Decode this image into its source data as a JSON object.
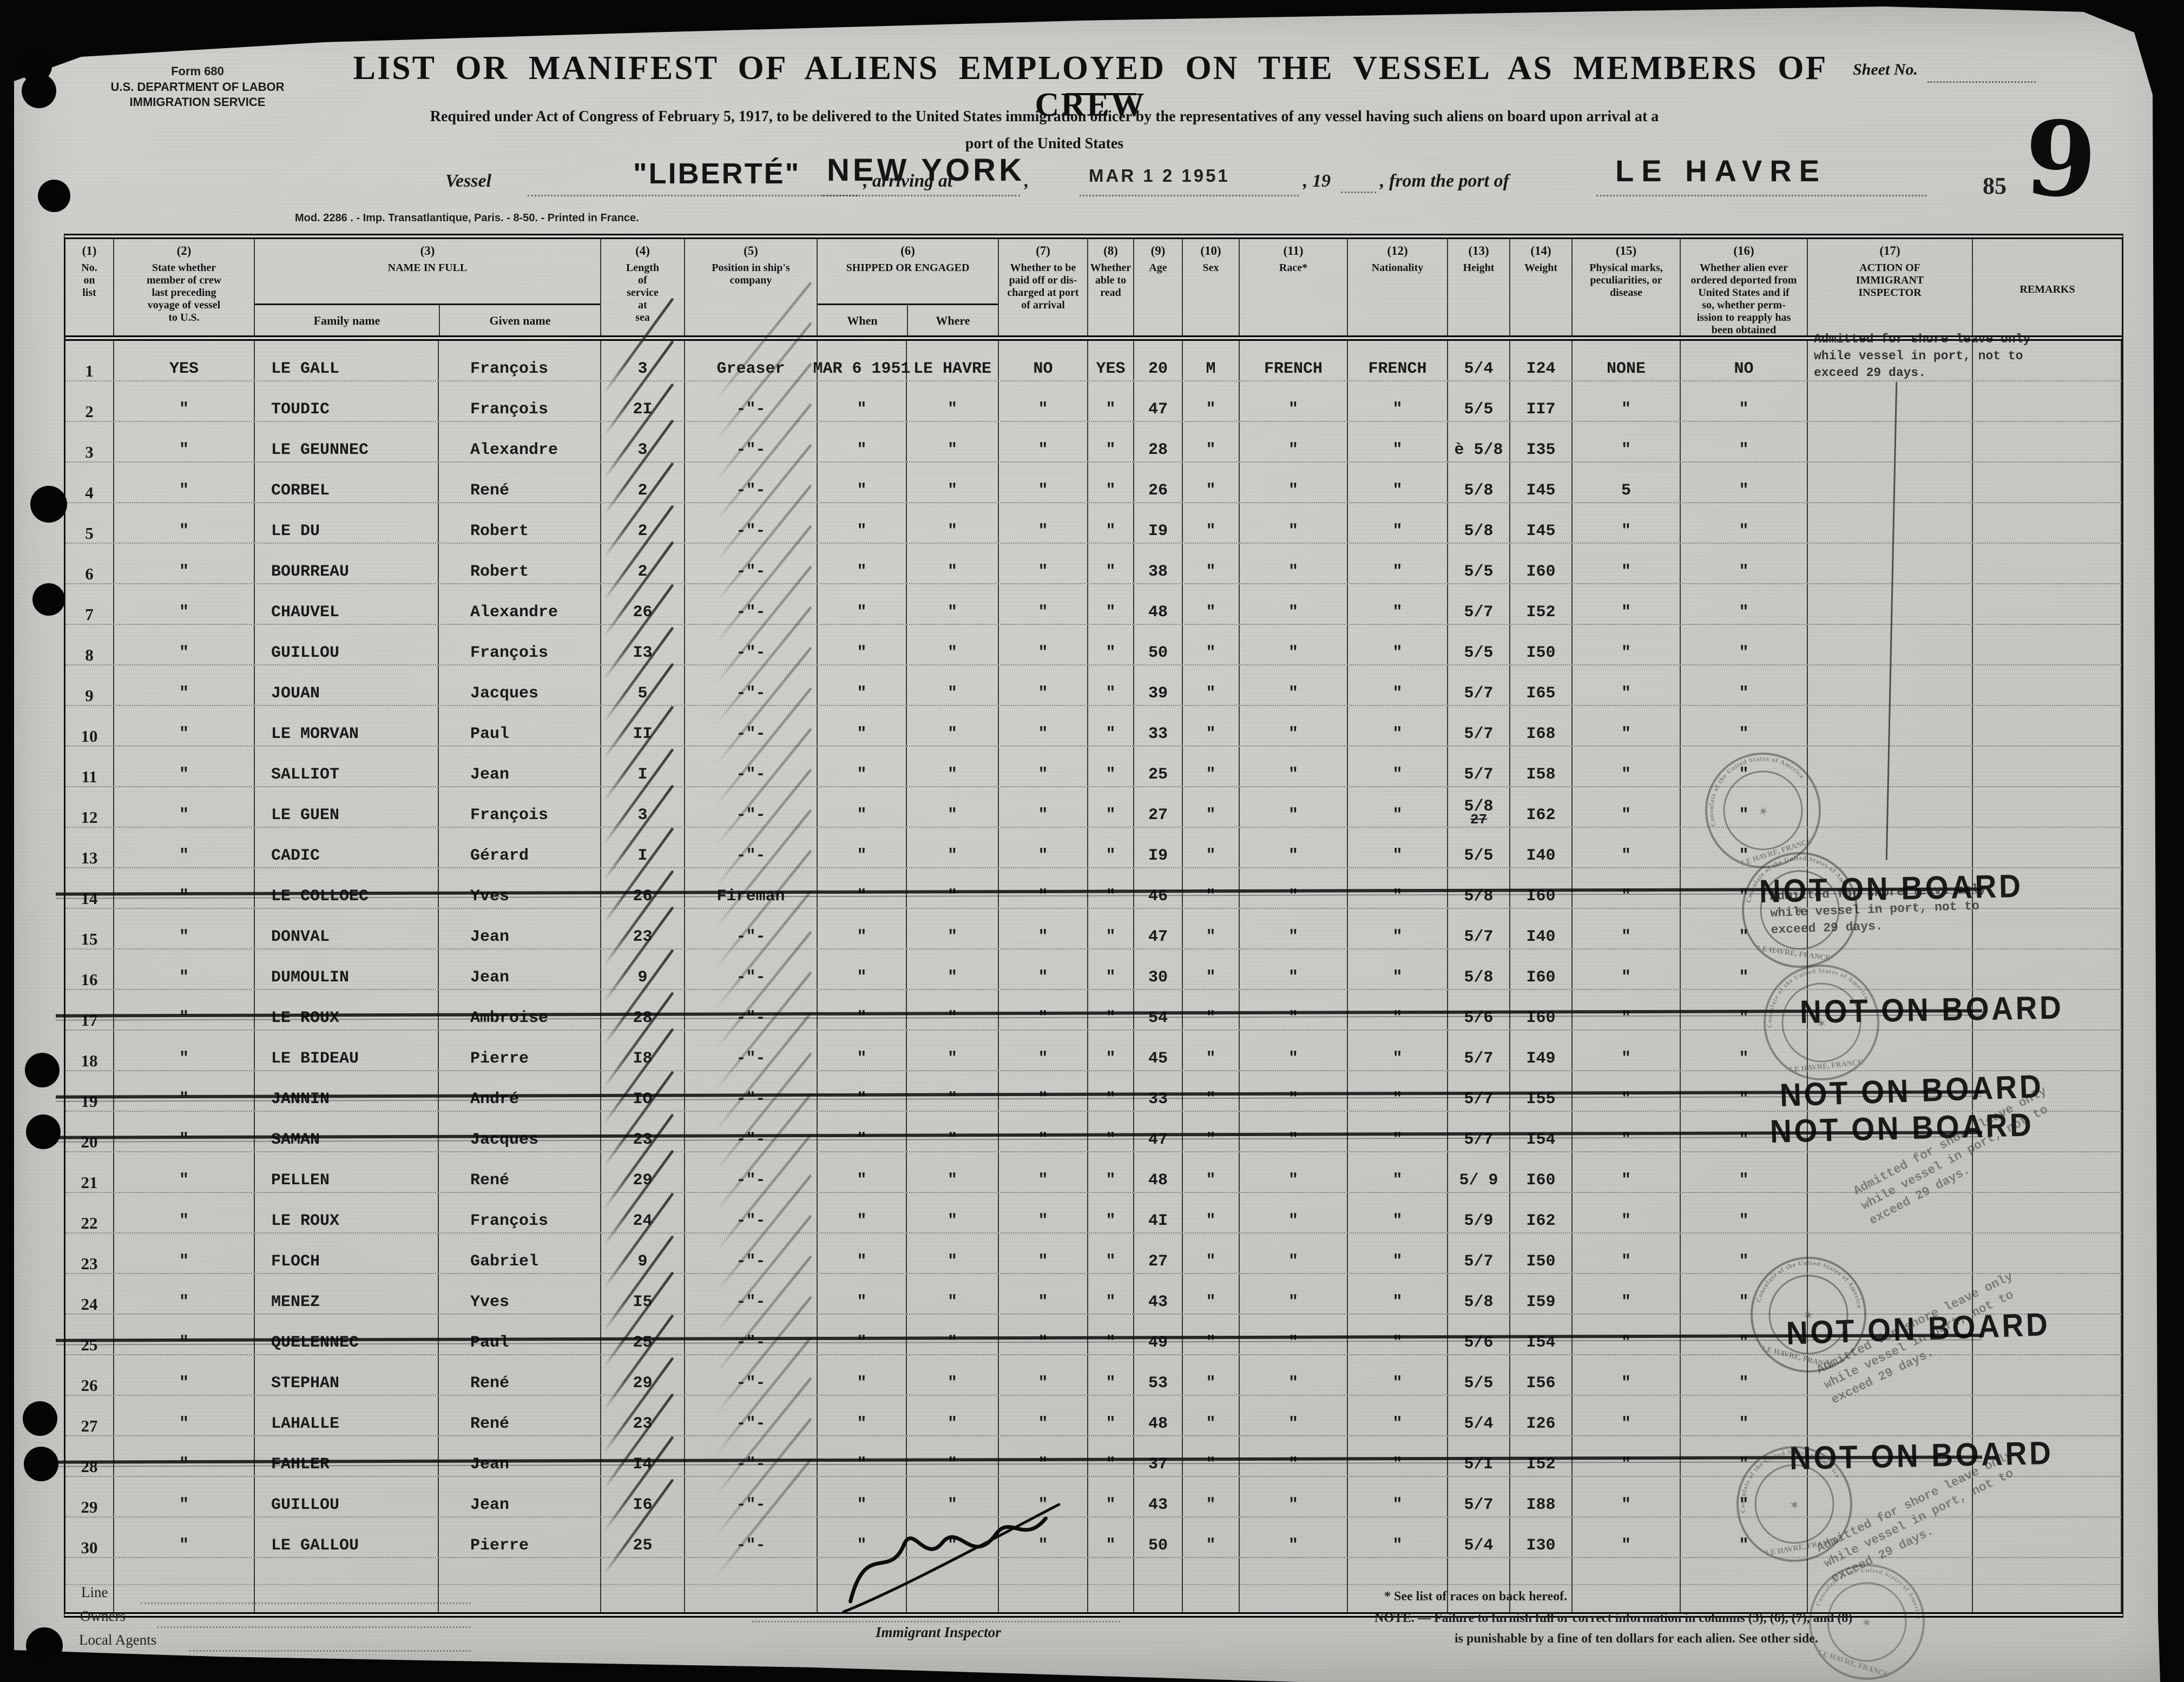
{
  "form": {
    "form_no": "Form 680",
    "dept": "U.S. DEPARTMENT OF LABOR",
    "service": "IMMIGRATION SERVICE",
    "title": "LIST OR MANIFEST OF ALIENS EMPLOYED ON THE VESSEL AS MEMBERS OF CREW",
    "subtitle_1": "Required under Act of Congress of February 5, 1917, to be delivered to the United States immigration officer by the representatives of any vessel having such aliens on board upon arrival at a",
    "subtitle_2": "port of the United States",
    "imprint": "Mod. 2286 .  -  Imp. Transatlantique, Paris.  -  8-50.  -  Printed in France."
  },
  "sheet": {
    "label": "Sheet No.",
    "big_number": "9",
    "small_number": "85"
  },
  "vessel": {
    "vessel_label": "Vessel",
    "name": "\"LIBERTÉ\"",
    "arriving_label": ", arriving at",
    "port_arrival": "NEW YORK",
    "comma": ",",
    "date_stamp": "MAR 1 2 1951",
    "year_label": ", 19",
    "from_label": ", from the port of",
    "port_origin": "LE HAVRE"
  },
  "columns": [
    {
      "num": "(1)",
      "label": "No.\non\nlist"
    },
    {
      "num": "(2)",
      "label": "State whether\nmember of crew\nlast preceding\nvoyage of vessel\nto U.S."
    },
    {
      "num": "(3)",
      "label": "NAME IN FULL",
      "sub": [
        "Family name",
        "Given name"
      ]
    },
    {
      "num": "(4)",
      "label": "Length\nof\nservice\nat\nsea"
    },
    {
      "num": "(5)",
      "label": "Position in ship's\ncompany"
    },
    {
      "num": "(6)",
      "label": "SHIPPED OR ENGAGED",
      "sub": [
        "When",
        "Where"
      ]
    },
    {
      "num": "(7)",
      "label": "Whether to be\npaid off or dis-\ncharged at port\nof arrival"
    },
    {
      "num": "(8)",
      "label": "Whether\nable to\nread"
    },
    {
      "num": "(9)",
      "label": "Age"
    },
    {
      "num": "(10)",
      "label": "Sex"
    },
    {
      "num": "(11)",
      "label": "Race*"
    },
    {
      "num": "(12)",
      "label": "Nationality"
    },
    {
      "num": "(13)",
      "label": "Height"
    },
    {
      "num": "(14)",
      "label": "Weight"
    },
    {
      "num": "(15)",
      "label": "Physical marks,\npeculiarities, or\ndisease"
    },
    {
      "num": "(16)",
      "label": "Whether alien ever\nordered deported from\nUnited States and if\nso, whether perm-\nission to reapply has\nbeen obtained"
    },
    {
      "num": "(17)",
      "label": "ACTION OF\nIMMIGRANT\nINSPECTOR"
    },
    {
      "num": "",
      "label": "REMARKS"
    }
  ],
  "rows": [
    {
      "no": "1",
      "prev": "YES",
      "family": "LE GALL",
      "given": "François",
      "service": "3",
      "position": "Greaser",
      "when": "MAR 6 1951",
      "where": "LE HAVRE",
      "paid": "NO",
      "read": "YES",
      "age": "20",
      "sex": "M",
      "race": "FRENCH",
      "nationality": "FRENCH",
      "height": "5/4",
      "weight": "I24",
      "marks": "NONE",
      "deported": "NO"
    },
    {
      "no": "2",
      "prev": "\"",
      "family": "TOUDIC",
      "given": "François",
      "service": "2I",
      "position": "-\"-",
      "when": "\"",
      "where": "\"",
      "paid": "\"",
      "read": "\"",
      "age": "47",
      "sex": "\"",
      "race": "\"",
      "nationality": "\"",
      "height": "5/5",
      "weight": "II7",
      "marks": "\"",
      "deported": "\""
    },
    {
      "no": "3",
      "prev": "\"",
      "family": "LE GEUNNEC",
      "given": "Alexandre",
      "service": "3",
      "position": "-\"-",
      "when": "\"",
      "where": "\"",
      "paid": "\"",
      "read": "\"",
      "age": "28",
      "sex": "\"",
      "race": "\"",
      "nationality": "\"",
      "height": "è 5/8",
      "weight": "I35",
      "marks": "\"",
      "deported": "\""
    },
    {
      "no": "4",
      "prev": "\"",
      "family": "CORBEL",
      "given": "René",
      "service": "2",
      "position": "-\"-",
      "when": "\"",
      "where": "\"",
      "paid": "\"",
      "read": "\"",
      "age": "26",
      "sex": "\"",
      "race": "\"",
      "nationality": "\"",
      "height": "5/8",
      "weight": "I45",
      "marks": "5",
      "deported": "\""
    },
    {
      "no": "5",
      "prev": "\"",
      "family": "LE DU",
      "given": "Robert",
      "service": "2",
      "position": "-\"-",
      "when": "\"",
      "where": "\"",
      "paid": "\"",
      "read": "\"",
      "age": "I9",
      "sex": "\"",
      "race": "\"",
      "nationality": "\"",
      "height": "5/8",
      "weight": "I45",
      "marks": "\"",
      "deported": "\""
    },
    {
      "no": "6",
      "prev": "\"",
      "family": "BOURREAU",
      "given": "Robert",
      "service": "2",
      "position": "-\"-",
      "when": "\"",
      "where": "\"",
      "paid": "\"",
      "read": "\"",
      "age": "38",
      "sex": "\"",
      "race": "\"",
      "nationality": "\"",
      "height": "5/5",
      "weight": "I60",
      "marks": "\"",
      "deported": "\""
    },
    {
      "no": "7",
      "prev": "\"",
      "family": "CHAUVEL",
      "given": "Alexandre",
      "service": "26",
      "position": "-\"-",
      "when": "\"",
      "where": "\"",
      "paid": "\"",
      "read": "\"",
      "age": "48",
      "sex": "\"",
      "race": "\"",
      "nationality": "\"",
      "height": "5/7",
      "weight": "I52",
      "marks": "\"",
      "deported": "\""
    },
    {
      "no": "8",
      "prev": "\"",
      "family": "GUILLOU",
      "given": "François",
      "service": "I3",
      "position": "-\"-",
      "when": "\"",
      "where": "\"",
      "paid": "\"",
      "read": "\"",
      "age": "50",
      "sex": "\"",
      "race": "\"",
      "nationality": "\"",
      "height": "5/5",
      "weight": "I50",
      "marks": "\"",
      "deported": "\""
    },
    {
      "no": "9",
      "prev": "\"",
      "family": "JOUAN",
      "given": "Jacques",
      "service": "5",
      "position": "-\"-",
      "when": "\"",
      "where": "\"",
      "paid": "\"",
      "read": "\"",
      "age": "39",
      "sex": "\"",
      "race": "\"",
      "nationality": "\"",
      "height": "5/7",
      "weight": "I65",
      "marks": "\"",
      "deported": "\""
    },
    {
      "no": "10",
      "prev": "\"",
      "family": "LE MORVAN",
      "given": "Paul",
      "service": "II",
      "position": "-\"-",
      "when": "\"",
      "where": "\"",
      "paid": "\"",
      "read": "\"",
      "age": "33",
      "sex": "\"",
      "race": "\"",
      "nationality": "\"",
      "height": "5/7",
      "weight": "I68",
      "marks": "\"",
      "deported": "\""
    },
    {
      "no": "11",
      "prev": "\"",
      "family": "SALLIOT",
      "given": "Jean",
      "service": "I",
      "position": "-\"-",
      "when": "\"",
      "where": "\"",
      "paid": "\"",
      "read": "\"",
      "age": "25",
      "sex": "\"",
      "race": "\"",
      "nationality": "\"",
      "height": "5/7",
      "weight": "I58",
      "marks": "\"",
      "deported": "\""
    },
    {
      "no": "12",
      "prev": "\"",
      "family": "LE GUEN",
      "given": "François",
      "service": "3",
      "position": "-\"-",
      "when": "\"",
      "where": "\"",
      "paid": "\"",
      "read": "\"",
      "age": "27",
      "sex": "\"",
      "race": "\"",
      "nationality": "\"",
      "height": "5/8",
      "height_struck": "27",
      "weight": "I62",
      "marks": "\"",
      "deported": "\""
    },
    {
      "no": "13",
      "prev": "\"",
      "family": "CADIC",
      "given": "Gérard",
      "service": "I",
      "position": "-\"-",
      "when": "\"",
      "where": "\"",
      "paid": "\"",
      "read": "\"",
      "age": "I9",
      "sex": "\"",
      "race": "\"",
      "nationality": "\"",
      "height": "5/5",
      "weight": "I40",
      "marks": "\"",
      "deported": "\""
    },
    {
      "no": "14",
      "prev": "\"",
      "family": "LE COLLOEC",
      "given": "Yves",
      "service": "26",
      "position": "Fireman",
      "when": "\"",
      "where": "\"",
      "paid": "\"",
      "read": "\"",
      "age": "46",
      "sex": "\"",
      "race": "\"",
      "nationality": "\"",
      "height": "5/8",
      "weight": "I60",
      "marks": "\"",
      "deported": "\"",
      "not_on_board": true
    },
    {
      "no": "15",
      "prev": "\"",
      "family": "DONVAL",
      "given": "Jean",
      "service": "23",
      "position": "-\"-",
      "when": "\"",
      "where": "\"",
      "paid": "\"",
      "read": "\"",
      "age": "47",
      "sex": "\"",
      "race": "\"",
      "nationality": "\"",
      "height": "5/7",
      "weight": "I40",
      "marks": "\"",
      "deported": "\""
    },
    {
      "no": "16",
      "prev": "\"",
      "family": "DUMOULIN",
      "given": "Jean",
      "service": "9",
      "position": "-\"-",
      "when": "\"",
      "where": "\"",
      "paid": "\"",
      "read": "\"",
      "age": "30",
      "sex": "\"",
      "race": "\"",
      "nationality": "\"",
      "height": "5/8",
      "weight": "I60",
      "marks": "\"",
      "deported": "\""
    },
    {
      "no": "17",
      "prev": "\"",
      "family": "LE ROUX",
      "given": "Ambroise",
      "service": "28",
      "position": "-\"-",
      "when": "\"",
      "where": "\"",
      "paid": "\"",
      "read": "\"",
      "age": "54",
      "sex": "\"",
      "race": "\"",
      "nationality": "\"",
      "height": "5/6",
      "weight": "I60",
      "marks": "\"",
      "deported": "\"",
      "not_on_board": true
    },
    {
      "no": "18",
      "prev": "\"",
      "family": "LE BIDEAU",
      "given": "Pierre",
      "service": "I8",
      "position": "-\"-",
      "when": "\"",
      "where": "\"",
      "paid": "\"",
      "read": "\"",
      "age": "45",
      "sex": "\"",
      "race": "\"",
      "nationality": "\"",
      "height": "5/7",
      "weight": "I49",
      "marks": "\"",
      "deported": "\""
    },
    {
      "no": "19",
      "prev": "\"",
      "family": "JANNIN",
      "given": "André",
      "service": "IO",
      "position": "-\"-",
      "when": "\"",
      "where": "\"",
      "paid": "\"",
      "read": "\"",
      "age": "33",
      "sex": "\"",
      "race": "\"",
      "nationality": "\"",
      "height": "5/7",
      "weight": "I55",
      "marks": "\"",
      "deported": "\"",
      "not_on_board": true
    },
    {
      "no": "20",
      "prev": "\"",
      "family": "SAMAN",
      "given": "Jacques",
      "service": "23",
      "position": "-\"-",
      "when": "\"",
      "where": "\"",
      "paid": "\"",
      "read": "\"",
      "age": "47",
      "sex": "\"",
      "race": "\"",
      "nationality": "\"",
      "height": "5/7",
      "weight": "I54",
      "marks": "\"",
      "deported": "\"",
      "not_on_board": true
    },
    {
      "no": "21",
      "prev": "\"",
      "family": "PELLEN",
      "given": "René",
      "service": "29",
      "position": "-\"-",
      "when": "\"",
      "where": "\"",
      "paid": "\"",
      "read": "\"",
      "age": "48",
      "sex": "\"",
      "race": "\"",
      "nationality": "\"",
      "height": "5/ 9",
      "weight": "I60",
      "marks": "\"",
      "deported": "\""
    },
    {
      "no": "22",
      "prev": "\"",
      "family": "LE ROUX",
      "given": "François",
      "service": "24",
      "position": "-\"-",
      "when": "\"",
      "where": "\"",
      "paid": "\"",
      "read": "\"",
      "age": "4I",
      "sex": "\"",
      "race": "\"",
      "nationality": "\"",
      "height": "5/9",
      "weight": "I62",
      "marks": "\"",
      "deported": "\""
    },
    {
      "no": "23",
      "prev": "\"",
      "family": "FLOCH",
      "given": "Gabriel",
      "service": "9",
      "position": "-\"-",
      "when": "\"",
      "where": "\"",
      "paid": "\"",
      "read": "\"",
      "age": "27",
      "sex": "\"",
      "race": "\"",
      "nationality": "\"",
      "height": "5/7",
      "weight": "I50",
      "marks": "\"",
      "deported": "\""
    },
    {
      "no": "24",
      "prev": "\"",
      "family": "MENEZ",
      "given": "Yves",
      "service": "I5",
      "position": "-\"-",
      "when": "\"",
      "where": "\"",
      "paid": "\"",
      "read": "\"",
      "age": "43",
      "sex": "\"",
      "race": "\"",
      "nationality": "\"",
      "height": "5/8",
      "weight": "I59",
      "marks": "\"",
      "deported": "\""
    },
    {
      "no": "25",
      "prev": "\"",
      "family": "QUELENNEC",
      "given": "Paul",
      "service": "25",
      "position": "-\"-",
      "when": "\"",
      "where": "\"",
      "paid": "\"",
      "read": "\"",
      "age": "49",
      "sex": "\"",
      "race": "\"",
      "nationality": "\"",
      "height": "5/6",
      "weight": "I54",
      "marks": "\"",
      "deported": "\"",
      "not_on_board": true
    },
    {
      "no": "26",
      "prev": "\"",
      "family": "STEPHAN",
      "given": "René",
      "service": "29",
      "position": "-\"-",
      "when": "\"",
      "where": "\"",
      "paid": "\"",
      "read": "\"",
      "age": "53",
      "sex": "\"",
      "race": "\"",
      "nationality": "\"",
      "height": "5/5",
      "weight": "I56",
      "marks": "\"",
      "deported": "\""
    },
    {
      "no": "27",
      "prev": "\"",
      "family": "LAHALLE",
      "given": "René",
      "service": "23",
      "position": "-\"-",
      "when": "\"",
      "where": "\"",
      "paid": "\"",
      "read": "\"",
      "age": "48",
      "sex": "\"",
      "race": "\"",
      "nationality": "\"",
      "height": "5/4",
      "weight": "I26",
      "marks": "\"",
      "deported": "\""
    },
    {
      "no": "28",
      "prev": "\"",
      "family": "FAHLER",
      "given": "Jean",
      "service": "I4",
      "position": "-\"-",
      "when": "\"",
      "where": "\"",
      "paid": "\"",
      "read": "\"",
      "age": "37",
      "sex": "\"",
      "race": "\"",
      "nationality": "\"",
      "height": "5/I",
      "weight": "I52",
      "marks": "\"",
      "deported": "\"",
      "not_on_board": true
    },
    {
      "no": "29",
      "prev": "\"",
      "family": "GUILLOU",
      "given": "Jean",
      "service": "I6",
      "position": "-\"-",
      "when": "\"",
      "where": "\"",
      "paid": "\"",
      "read": "\"",
      "age": "43",
      "sex": "\"",
      "race": "\"",
      "nationality": "\"",
      "height": "5/7",
      "weight": "I88",
      "marks": "\"",
      "deported": "\""
    },
    {
      "no": "30",
      "prev": "\"",
      "family": "LE GALLOU",
      "given": "Pierre",
      "service": "25",
      "position": "-\"-",
      "when": "\"",
      "where": "\"",
      "paid": "\"",
      "read": "\"",
      "age": "50",
      "sex": "\"",
      "race": "\"",
      "nationality": "\"",
      "height": "5/4",
      "weight": "I30",
      "marks": "\"",
      "deported": "\""
    }
  ],
  "annotations": {
    "action_note": "Admitted for shore leave only\nwhile vessel in port, not to\nexceed 29 days.",
    "not_on_board": "NOT ON BOARD",
    "stamp_ring_top": "Consulate of the United States of America",
    "stamp_ring_bottom": "LE HAVRE, FRANCE"
  },
  "footer": {
    "line_label": "Line",
    "owners_label": "Owners",
    "agents_label": "Local Agents",
    "inspector_label": "Immigrant Inspector",
    "note_1": "* See list of races on back hereof.",
    "note_2": "NOTE.  —  Failure to furnish full or correct information in columns (3), (6), (7), and (8)",
    "note_3": "is punishable by a fine of ten dollars for each alien. See other side."
  }
}
